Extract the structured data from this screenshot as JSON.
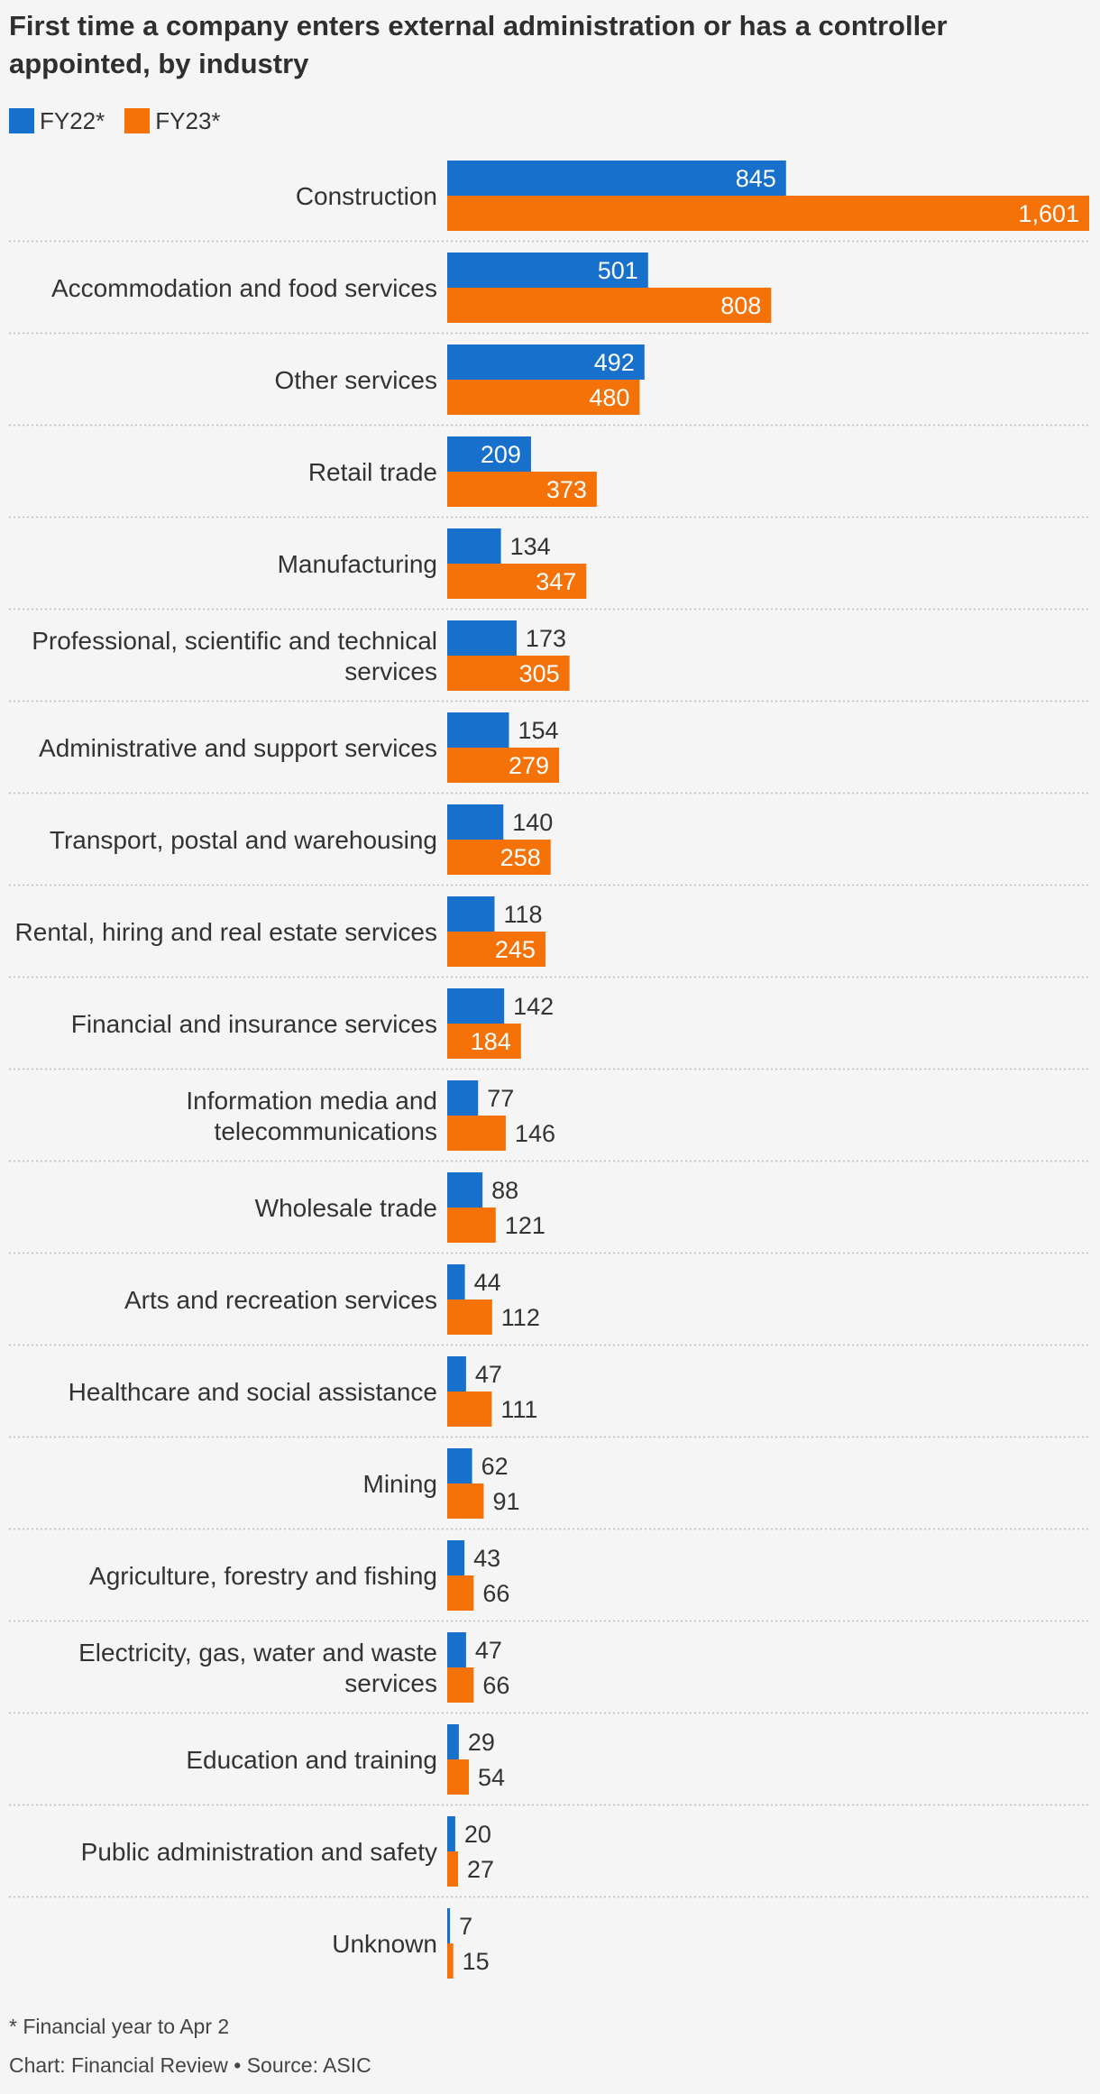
{
  "chart_data": {
    "type": "bar",
    "orientation": "horizontal",
    "title": "First time a company enters external administration or has a controller appointed, by industry",
    "legend_position": "top-left",
    "grid": false,
    "xlim": [
      0,
      1601
    ],
    "categories": [
      "Construction",
      "Accommodation and food services",
      "Other services",
      "Retail trade",
      "Manufacturing",
      "Professional, scientific and technical services",
      "Administrative and support services",
      "Transport, postal and warehousing",
      "Rental, hiring and real estate services",
      "Financial and insurance services",
      "Information media and telecommunications",
      "Wholesale trade",
      "Arts and recreation services",
      "Healthcare and social assistance",
      "Mining",
      "Agriculture, forestry and fishing",
      "Electricity, gas, water and waste services",
      "Education and training",
      "Public administration and safety",
      "Unknown"
    ],
    "series": [
      {
        "name": "FY22*",
        "color": "#1670cc",
        "values": [
          845,
          501,
          492,
          209,
          134,
          173,
          154,
          140,
          118,
          142,
          77,
          88,
          44,
          47,
          62,
          43,
          47,
          29,
          20,
          7
        ]
      },
      {
        "name": "FY23*",
        "color": "#f57209",
        "values": [
          1601,
          808,
          480,
          373,
          347,
          305,
          279,
          258,
          245,
          184,
          146,
          121,
          112,
          111,
          91,
          66,
          66,
          54,
          27,
          15
        ]
      }
    ]
  },
  "footnote": "* Financial year to Apr 2",
  "source": "Chart: Financial Review • Source: ASIC"
}
